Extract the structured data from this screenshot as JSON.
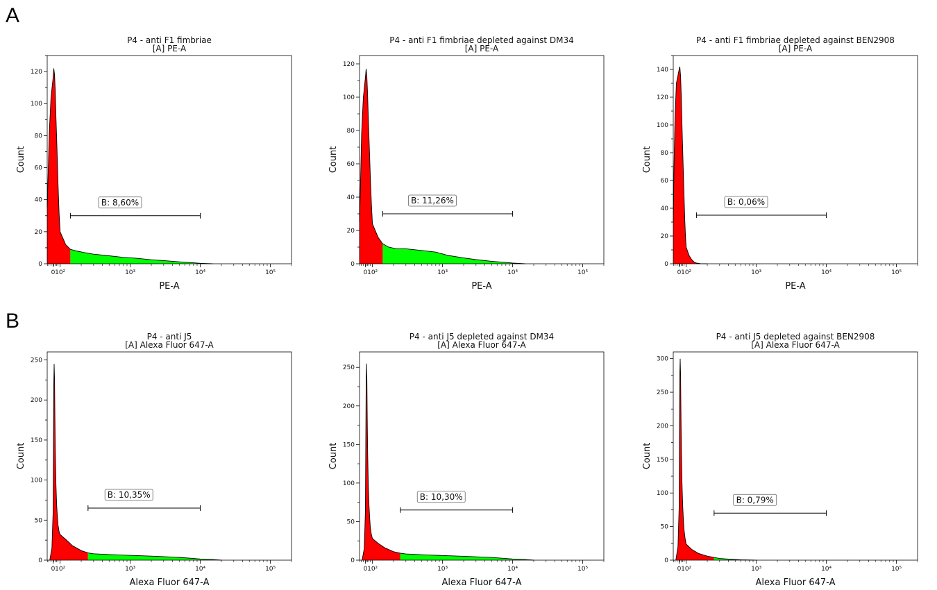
{
  "panel_labels": [
    "A",
    "B"
  ],
  "colors": {
    "negative_fill": "#ff0000",
    "positive_fill": "#00ff00",
    "outline": "#000000"
  },
  "chart_data": [
    {
      "type": "area",
      "title": "P4 - anti F1 fimbriae",
      "subtitle": "[A] PE-A",
      "xlabel": "PE-A",
      "ylabel": "Count",
      "x_scale": "biexponential",
      "xlim": [
        -60,
        200000
      ],
      "ylim": [
        0,
        130
      ],
      "y_ticks": [
        0,
        20,
        40,
        60,
        80,
        100,
        120
      ],
      "x_tick_labels": [
        "0",
        "10²",
        "10³",
        "10⁴",
        "10⁵"
      ],
      "gate": {
        "name": "B",
        "label": "B: 8,60%",
        "percent": 8.6,
        "range": [
          140,
          10000
        ],
        "y_level": 30
      },
      "series": [
        {
          "x": [
            -60,
            -40,
            -25,
            -10,
            0,
            10,
            20,
            30,
            40,
            55,
            70,
            85,
            100,
            120,
            140,
            170,
            220,
            300,
            500,
            800,
            1200,
            2000,
            3000,
            5000,
            8000,
            10000,
            15000
          ],
          "y": [
            35,
            58,
            82,
            104,
            116,
            122,
            118,
            108,
            92,
            72,
            50,
            32,
            20,
            12,
            9,
            8,
            7,
            6,
            5,
            4,
            3.5,
            2.5,
            2,
            1.2,
            0.6,
            0.3,
            0
          ]
        }
      ]
    },
    {
      "type": "area",
      "title": "P4 - anti F1 fimbriae depleted against DM34",
      "subtitle": "[A] PE-A",
      "xlabel": "PE-A",
      "ylabel": "Count",
      "x_scale": "biexponential",
      "xlim": [
        -60,
        200000
      ],
      "ylim": [
        0,
        125
      ],
      "y_ticks": [
        0,
        20,
        40,
        60,
        80,
        100,
        120
      ],
      "x_tick_labels": [
        "0",
        "10²",
        "10³",
        "10⁴",
        "10⁵"
      ],
      "gate": {
        "name": "B",
        "label": "B: 11,26%",
        "percent": 11.26,
        "range": [
          140,
          10000
        ],
        "y_level": 30
      },
      "series": [
        {
          "x": [
            -60,
            -40,
            -25,
            -10,
            0,
            10,
            20,
            30,
            40,
            55,
            70,
            85,
            100,
            120,
            140,
            170,
            220,
            300,
            500,
            800,
            1200,
            2000,
            3000,
            5000,
            8000,
            10000,
            15000
          ],
          "y": [
            25,
            50,
            78,
            100,
            112,
            117,
            112,
            102,
            88,
            70,
            52,
            36,
            24,
            16,
            12,
            10,
            9,
            9,
            8,
            7,
            5,
            3.5,
            2.5,
            1.5,
            0.8,
            0.4,
            0
          ]
        }
      ]
    },
    {
      "type": "area",
      "title": "P4 - anti F1 fimbriae  depleted against BEN2908",
      "subtitle": "[A] PE-A",
      "xlabel": "PE-A",
      "ylabel": "Count",
      "x_scale": "biexponential",
      "xlim": [
        -60,
        200000
      ],
      "ylim": [
        0,
        150
      ],
      "y_ticks": [
        0,
        20,
        40,
        60,
        80,
        100,
        120,
        140
      ],
      "x_tick_labels": [
        "0",
        "10²",
        "10³",
        "10⁴",
        "10⁵"
      ],
      "gate": {
        "name": "B",
        "label": "B: 0,06%",
        "percent": 0.06,
        "range": [
          140,
          10000
        ],
        "y_level": 35
      },
      "series": [
        {
          "x": [
            -60,
            -45,
            -30,
            -15,
            0,
            10,
            20,
            30,
            40,
            50,
            60,
            70,
            80,
            90,
            100,
            110,
            120,
            130,
            140,
            160,
            200
          ],
          "y": [
            30,
            70,
            105,
            130,
            140,
            142,
            135,
            120,
            100,
            82,
            65,
            48,
            32,
            20,
            12,
            6,
            3,
            1.2,
            0.5,
            0.1,
            0
          ]
        }
      ]
    },
    {
      "type": "area",
      "title": "P4 - anti J5",
      "subtitle": "[A] Alexa Fluor 647-A",
      "xlabel": "Alexa Fluor 647-A",
      "ylabel": "Count",
      "x_scale": "biexponential",
      "xlim": [
        -60,
        200000
      ],
      "ylim": [
        0,
        260
      ],
      "y_ticks": [
        0,
        50,
        100,
        150,
        200,
        250
      ],
      "x_tick_labels": [
        "0",
        "10²",
        "10³",
        "10⁴",
        "10⁵"
      ],
      "gate": {
        "name": "B",
        "label": "B: 10,35%",
        "percent": 10.35,
        "range": [
          250,
          10000
        ],
        "y_level": 65
      },
      "series": [
        {
          "x": [
            -20,
            -5,
            0,
            5,
            10,
            15,
            20,
            25,
            30,
            40,
            50,
            60,
            70,
            85,
            100,
            120,
            150,
            200,
            250,
            300,
            500,
            1000,
            2000,
            5000,
            10000,
            15000,
            20000
          ],
          "y": [
            0,
            15,
            60,
            140,
            220,
            245,
            225,
            180,
            140,
            95,
            70,
            55,
            44,
            36,
            32,
            26,
            18,
            12,
            9,
            8,
            7,
            6,
            5,
            3.5,
            1.5,
            0.8,
            0
          ]
        }
      ]
    },
    {
      "type": "area",
      "title": "P4 - anti J5 depleted against DM34",
      "subtitle": "[A] Alexa Fluor 647-A",
      "xlabel": "Alexa Fluor 647-A",
      "ylabel": "Count",
      "x_scale": "biexponential",
      "xlim": [
        -60,
        200000
      ],
      "ylim": [
        0,
        270
      ],
      "y_ticks": [
        0,
        50,
        100,
        150,
        200,
        250
      ],
      "x_tick_labels": [
        "0",
        "10²",
        "10³",
        "10⁴",
        "10⁵"
      ],
      "gate": {
        "name": "B",
        "label": "B: 10,30%",
        "percent": 10.3,
        "range": [
          250,
          10000
        ],
        "y_level": 65
      },
      "series": [
        {
          "x": [
            -20,
            -5,
            0,
            5,
            10,
            15,
            20,
            25,
            30,
            40,
            50,
            60,
            70,
            85,
            100,
            120,
            150,
            200,
            250,
            300,
            500,
            1000,
            2000,
            5000,
            10000,
            15000,
            20000
          ],
          "y": [
            0,
            15,
            65,
            150,
            230,
            255,
            235,
            185,
            145,
            98,
            72,
            55,
            42,
            33,
            28,
            22,
            16,
            11,
            9,
            8,
            7,
            6,
            5,
            3.5,
            1.5,
            0.8,
            0
          ]
        }
      ]
    },
    {
      "type": "area",
      "title": "P4 - anti J5 depleted against BEN2908",
      "subtitle": "[A] Alexa Fluor 647-A",
      "xlabel": "Alexa Fluor 647-A",
      "ylabel": "Count",
      "x_scale": "biexponential",
      "xlim": [
        -60,
        200000
      ],
      "ylim": [
        0,
        310
      ],
      "y_ticks": [
        0,
        50,
        100,
        150,
        200,
        250,
        300
      ],
      "x_tick_labels": [
        "0",
        "10²",
        "10³",
        "10⁴",
        "10⁵"
      ],
      "gate": {
        "name": "B",
        "label": "B: 0,79%",
        "percent": 0.79,
        "range": [
          250,
          10000
        ],
        "y_level": 70
      },
      "series": [
        {
          "x": [
            -20,
            -5,
            0,
            5,
            10,
            15,
            20,
            25,
            30,
            40,
            50,
            60,
            70,
            85,
            100,
            120,
            150,
            200,
            250,
            300,
            400,
            600,
            1000
          ],
          "y": [
            0,
            20,
            80,
            190,
            280,
            300,
            275,
            220,
            170,
            115,
            82,
            60,
            45,
            32,
            24,
            16,
            10,
            6,
            4,
            2.5,
            1.5,
            0.5,
            0
          ]
        }
      ]
    }
  ]
}
